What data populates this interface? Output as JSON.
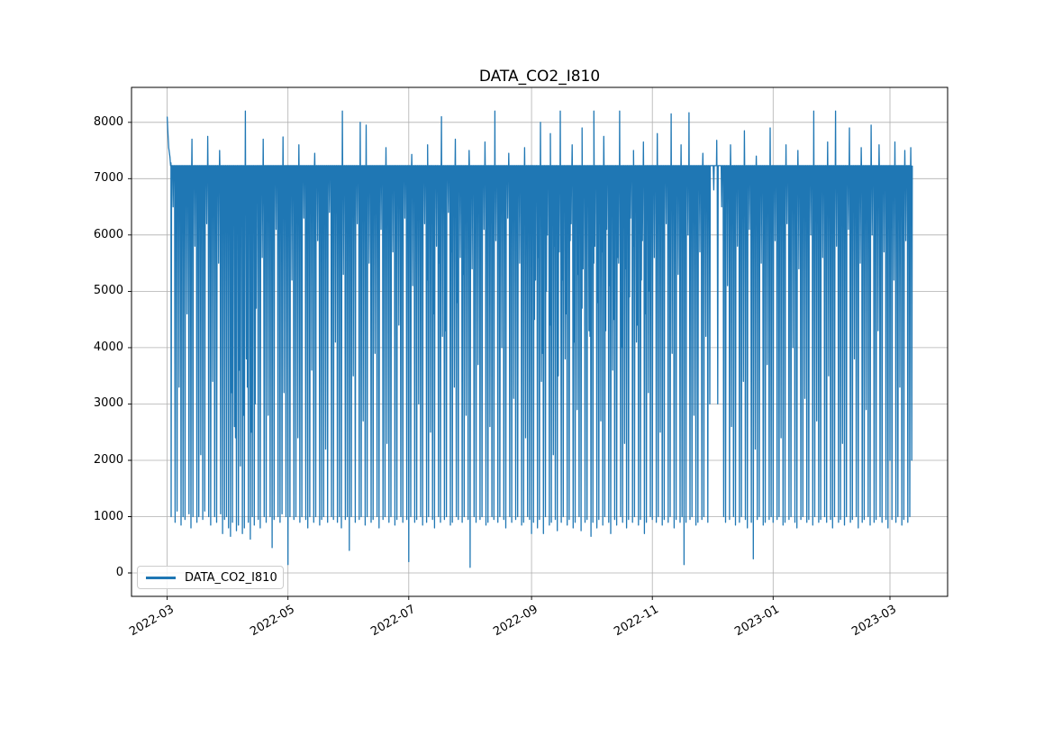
{
  "chart_data": {
    "type": "line",
    "title": "DATA_CO2_I810",
    "grid": true,
    "grid_color": "#b0b0b0",
    "legend": {
      "entries": [
        "DATA_CO2_I810"
      ],
      "position": "lower left"
    },
    "series": [
      {
        "name": "DATA_CO2_I810",
        "color": "#1f77b4"
      }
    ],
    "x_axis": {
      "tick_labels": [
        "2022-03",
        "2022-05",
        "2022-07",
        "2022-09",
        "2022-11",
        "2023-01",
        "2023-03"
      ],
      "tick_days": [
        0,
        61,
        122,
        184,
        245,
        306,
        365
      ],
      "lim_days": [
        -18,
        394.1
      ],
      "rotation_deg": 30
    },
    "y_axis": {
      "tick_values": [
        0,
        1000,
        2000,
        3000,
        4000,
        5000,
        6000,
        7000,
        8000
      ],
      "lim": [
        -415,
        8620
      ]
    },
    "baseline": 7230,
    "lead_in": [
      [
        0,
        8100
      ],
      [
        0.35,
        7850
      ],
      [
        0.8,
        7550
      ],
      [
        1.4,
        7380
      ],
      [
        1.9,
        7280
      ]
    ],
    "daily_min": [
      null,
      null,
      1000,
      6500,
      900,
      1100,
      3300,
      850,
      1000,
      950,
      4600,
      1050,
      800,
      1000,
      5800,
      900,
      1000,
      2100,
      950,
      1100,
      6200,
      1000,
      850,
      3400,
      1000,
      900,
      5500,
      1050,
      700,
      950,
      1000,
      800,
      650,
      900,
      2600,
      750,
      850,
      1900,
      700,
      800,
      3800,
      900,
      600,
      1000,
      850,
      4700,
      950,
      800,
      5600,
      1000,
      900,
      2800,
      1000,
      450,
      950,
      6100,
      1000,
      900,
      1050,
      3200,
      1000,
      150,
      1000,
      5200,
      950,
      1000,
      2400,
      900,
      1000,
      6300,
      950,
      800,
      1000,
      3600,
      900,
      1000,
      5900,
      850,
      950,
      1000,
      2200,
      900,
      6400,
      1000,
      950,
      4100,
      900,
      1000,
      800,
      5300,
      950,
      1000,
      400,
      1000,
      3500,
      900,
      6200,
      950,
      1000,
      2700,
      850,
      1000,
      5500,
      900,
      950,
      3900,
      1000,
      800,
      6100,
      950,
      1000,
      2300,
      900,
      1000,
      5700,
      850,
      950,
      4400,
      1000,
      900,
      6300,
      950,
      200,
      1000,
      5100,
      900,
      950,
      3000,
      1000,
      850,
      6200,
      900,
      1000,
      2500,
      950,
      800,
      5800,
      1000,
      900,
      4200,
      950,
      1000,
      6400,
      850,
      900,
      3300,
      1000,
      950,
      5600,
      900,
      1000,
      2800,
      950,
      100,
      5400,
      1000,
      900,
      3700,
      950,
      1000,
      6100,
      850,
      900,
      2600,
      1000,
      950,
      5900,
      900,
      1000,
      4000,
      950,
      800,
      6300,
      1000,
      900,
      3100,
      950,
      1000,
      5500,
      850,
      900,
      2400,
      1000,
      950,
      700,
      900,
      5200,
      800,
      950,
      3400,
      700,
      1000,
      6000,
      850,
      900,
      2100,
      950,
      750,
      5700,
      900,
      1000,
      3800,
      850,
      950,
      6200,
      800,
      900,
      2900,
      1000,
      750,
      5400,
      900,
      950,
      4300,
      650,
      900,
      5800,
      800,
      950,
      2700,
      850,
      1000,
      6100,
      900,
      700,
      3600,
      950,
      850,
      5500,
      1000,
      900,
      2300,
      800,
      950,
      6300,
      900,
      1000,
      4100,
      850,
      950,
      5900,
      700,
      900,
      3200,
      1000,
      950,
      5600,
      900,
      1000,
      2500,
      850,
      950,
      6200,
      900,
      1000,
      3900,
      800,
      950,
      5300,
      900,
      1000,
      150,
      900,
      6000,
      950,
      1000,
      2800,
      850,
      900,
      5700,
      950,
      1000,
      4200,
      900,
      3000,
      null,
      6800,
      null,
      3000,
      null,
      6500,
      1000,
      900,
      5100,
      950,
      2600,
      1000,
      850,
      5800,
      900,
      1000,
      3400,
      950,
      800,
      6100,
      900,
      250,
      2200,
      950,
      1000,
      5500,
      850,
      900,
      3700,
      950,
      1000,
      900,
      5900,
      950,
      1000,
      2400,
      850,
      900,
      6200,
      950,
      1000,
      4000,
      900,
      800,
      5400,
      950,
      1000,
      3100,
      900,
      950,
      6000,
      850,
      1000,
      2700,
      900,
      950,
      5600,
      1000,
      900,
      3500,
      950,
      800,
      1000,
      5800,
      900,
      950,
      2300,
      850,
      1000,
      6100,
      900,
      950,
      3800,
      1000,
      800,
      5500,
      900,
      950,
      2900,
      1000,
      850,
      6000,
      900,
      950,
      4300,
      1000,
      900,
      5700,
      950,
      800,
      2000,
      950,
      5200,
      900,
      1000,
      3300,
      850,
      950,
      5900,
      900,
      1000,
      2000
    ],
    "half_day_min": [
      [
        32.5,
        3200
      ],
      [
        34.5,
        2400
      ],
      [
        36.5,
        3600
      ],
      [
        38.5,
        2800
      ],
      [
        40.5,
        3300
      ],
      [
        42.5,
        2500
      ],
      [
        44.5,
        3000
      ],
      [
        131.5,
        5200
      ],
      [
        134.5,
        4600
      ],
      [
        137.5,
        5500
      ],
      [
        140.5,
        4300
      ],
      [
        143.5,
        5700
      ],
      [
        146.5,
        4800
      ],
      [
        149.5,
        5300
      ],
      [
        185.5,
        4500
      ],
      [
        187.5,
        5600
      ],
      [
        189.5,
        3900
      ],
      [
        191.5,
        5000
      ],
      [
        193.5,
        4400
      ],
      [
        195.5,
        5800
      ],
      [
        197.5,
        3500
      ],
      [
        199.5,
        5200
      ],
      [
        201.5,
        4600
      ],
      [
        203.5,
        5900
      ],
      [
        205.5,
        4100
      ],
      [
        207.5,
        5300
      ],
      [
        209.5,
        4700
      ],
      [
        211.5,
        6000
      ],
      [
        213.5,
        4200
      ],
      [
        215.5,
        5500
      ],
      [
        217.5,
        4800
      ],
      [
        219.5,
        5700
      ],
      [
        221.5,
        4300
      ],
      [
        223.5,
        5100
      ],
      [
        225.5,
        4500
      ],
      [
        227.5,
        5600
      ],
      [
        229.5,
        4000
      ],
      [
        231.5,
        5400
      ],
      [
        233.5,
        4900
      ],
      [
        235.5,
        5800
      ],
      [
        237.5,
        4400
      ],
      [
        239.5,
        5200
      ],
      [
        241.5,
        4600
      ],
      [
        243.5,
        5000
      ]
    ],
    "up_spikes": [
      [
        12,
        7700
      ],
      [
        20,
        7750
      ],
      [
        26,
        7500
      ],
      [
        39,
        8200
      ],
      [
        48,
        7700
      ],
      [
        58,
        7740
      ],
      [
        66,
        7600
      ],
      [
        74,
        7450
      ],
      [
        88,
        8200
      ],
      [
        97,
        8000
      ],
      [
        100,
        7950
      ],
      [
        110,
        7550
      ],
      [
        123,
        7430
      ],
      [
        131,
        7600
      ],
      [
        138,
        8100
      ],
      [
        145,
        7700
      ],
      [
        152,
        7500
      ],
      [
        160,
        7650
      ],
      [
        165,
        8200
      ],
      [
        172,
        7450
      ],
      [
        180,
        7550
      ],
      [
        188,
        8000
      ],
      [
        193,
        7800
      ],
      [
        198,
        8200
      ],
      [
        204,
        7600
      ],
      [
        209,
        7900
      ],
      [
        215,
        8200
      ],
      [
        220,
        7750
      ],
      [
        228,
        8200
      ],
      [
        235,
        7500
      ],
      [
        240,
        7650
      ],
      [
        247,
        7800
      ],
      [
        254,
        8150
      ],
      [
        259,
        7600
      ],
      [
        263,
        8170
      ],
      [
        270,
        7450
      ],
      [
        277,
        7680
      ],
      [
        284,
        7600
      ],
      [
        291,
        7850
      ],
      [
        297,
        7400
      ],
      [
        304,
        7900
      ],
      [
        312,
        7600
      ],
      [
        318,
        7500
      ],
      [
        326,
        8200
      ],
      [
        333,
        7650
      ],
      [
        337,
        8200
      ],
      [
        344,
        7900
      ],
      [
        350,
        7550
      ],
      [
        355,
        7950
      ],
      [
        359,
        7600
      ],
      [
        367,
        7650
      ],
      [
        372,
        7500
      ],
      [
        375,
        7550
      ]
    ]
  }
}
